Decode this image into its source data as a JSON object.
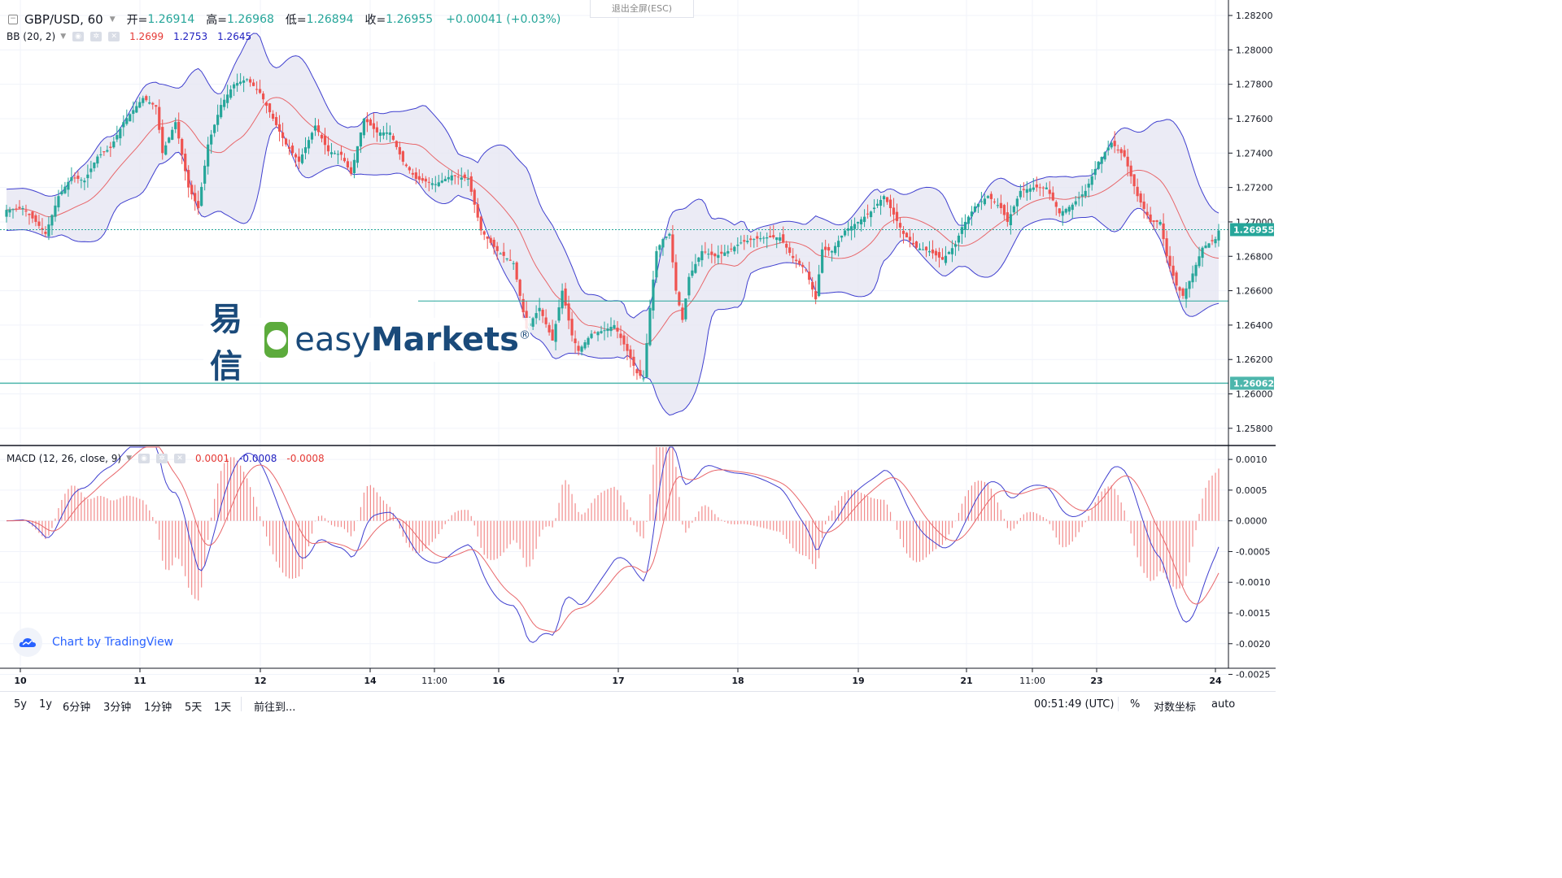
{
  "header": {
    "symbol": "GBP/USD, 60",
    "open_label": "开=",
    "open": "1.26914",
    "high_label": "高=",
    "high": "1.26968",
    "low_label": "低=",
    "low": "1.26894",
    "close_label": "收=",
    "close": "1.26955",
    "change": "+0.00041 (+0.03%)"
  },
  "exit_fullscreen": "退出全屏(ESC)",
  "bb": {
    "label": "BB (20, 2)",
    "v1": "1.2699",
    "v2": "1.2753",
    "v3": "1.2645"
  },
  "macd": {
    "label": "MACD (12, 26, close, 9)",
    "v1": "0.0001",
    "v2": "-0.0008",
    "v3": "-0.0008"
  },
  "watermark": {
    "cn": "易信",
    "en_light": "easy",
    "en_bold": "Markets",
    "reg": "®"
  },
  "tv_logo_text": "Chart by TradingView",
  "toolbar": {
    "ranges": [
      "5y",
      "1y",
      "6分钟",
      "3分钟",
      "1分钟",
      "5天",
      "1天"
    ],
    "goto": "前往到...",
    "time": "00:51:49 (UTC)",
    "percent": "%",
    "log": "对数坐标",
    "auto": "auto"
  },
  "colors": {
    "up": "#26a69a",
    "down": "#ef5350",
    "bb_fill": "#e6e6f2",
    "bb_line": "#3f3fcf",
    "basis": "#e8666a",
    "macd_line": "#3f3fcf",
    "signal": "#e8666a",
    "hist": "#f28b8b"
  },
  "chart_data": {
    "type": "candlestick",
    "price_axis": {
      "ticks": [
        "1.28200",
        "1.28000",
        "1.27800",
        "1.27600",
        "1.27400",
        "1.27200",
        "1.27000",
        "1.26800",
        "1.26600",
        "1.26400",
        "1.26200",
        "1.26000",
        "1.25800"
      ],
      "min": 1.257,
      "max": 1.2829
    },
    "last_price": "1.26955",
    "level_price": "1.26062",
    "level_price_value": 1.26062,
    "support_line": 1.2654,
    "time_axis": [
      "10",
      "11",
      "12",
      "14",
      "11:00",
      "16",
      "17",
      "18",
      "19",
      "21",
      "11:00",
      "23",
      "24"
    ],
    "macd_axis": {
      "ticks": [
        "0.0010",
        "0.0005",
        "0.0000",
        "-0.0005",
        "-0.0010",
        "-0.0015",
        "-0.0020",
        "-0.0025"
      ],
      "min": -0.0024,
      "max": 0.0012
    },
    "path_anchors": [
      [
        0,
        1.2707
      ],
      [
        5,
        1.2708
      ],
      [
        9,
        1.27
      ],
      [
        12,
        1.2693
      ],
      [
        16,
        1.2715
      ],
      [
        20,
        1.2726
      ],
      [
        24,
        1.2724
      ],
      [
        28,
        1.2738
      ],
      [
        32,
        1.2743
      ],
      [
        36,
        1.2758
      ],
      [
        42,
        1.2772
      ],
      [
        46,
        1.2767
      ],
      [
        48,
        1.274
      ],
      [
        52,
        1.2758
      ],
      [
        56,
        1.272
      ],
      [
        59,
        1.2708
      ],
      [
        62,
        1.2745
      ],
      [
        66,
        1.2768
      ],
      [
        70,
        1.278
      ],
      [
        74,
        1.2783
      ],
      [
        78,
        1.2775
      ],
      [
        82,
        1.276
      ],
      [
        86,
        1.2745
      ],
      [
        90,
        1.2735
      ],
      [
        95,
        1.2756
      ],
      [
        99,
        1.2741
      ],
      [
        103,
        1.2739
      ],
      [
        106,
        1.2728
      ],
      [
        110,
        1.276
      ],
      [
        114,
        1.2752
      ],
      [
        118,
        1.2752
      ],
      [
        122,
        1.2735
      ],
      [
        126,
        1.2725
      ],
      [
        132,
        1.2722
      ],
      [
        137,
        1.2727
      ],
      [
        142,
        1.2725
      ],
      [
        146,
        1.2695
      ],
      [
        151,
        1.2683
      ],
      [
        156,
        1.2676
      ],
      [
        160,
        1.2638
      ],
      [
        164,
        1.265
      ],
      [
        168,
        1.2631
      ],
      [
        171,
        1.266
      ],
      [
        174,
        1.2634
      ],
      [
        176,
        1.2625
      ],
      [
        180,
        1.2635
      ],
      [
        184,
        1.2637
      ],
      [
        187,
        1.264
      ],
      [
        191,
        1.2625
      ],
      [
        194,
        1.2612
      ],
      [
        196,
        1.2609
      ],
      [
        198,
        1.265
      ],
      [
        200,
        1.2683
      ],
      [
        202,
        1.269
      ],
      [
        204,
        1.2693
      ],
      [
        206,
        1.266
      ],
      [
        208,
        1.2643
      ],
      [
        210,
        1.2668
      ],
      [
        214,
        1.2683
      ],
      [
        218,
        1.268
      ],
      [
        222,
        1.2683
      ],
      [
        226,
        1.2688
      ],
      [
        230,
        1.269
      ],
      [
        234,
        1.2691
      ],
      [
        238,
        1.2691
      ],
      [
        242,
        1.2679
      ],
      [
        246,
        1.2672
      ],
      [
        249,
        1.2655
      ],
      [
        251,
        1.2684
      ],
      [
        254,
        1.2683
      ],
      [
        258,
        1.2695
      ],
      [
        262,
        1.27
      ],
      [
        266,
        1.2706
      ],
      [
        270,
        1.2715
      ],
      [
        272,
        1.2708
      ],
      [
        276,
        1.2693
      ],
      [
        280,
        1.2685
      ],
      [
        284,
        1.2683
      ],
      [
        288,
        1.2678
      ],
      [
        292,
        1.2687
      ],
      [
        294,
        1.2697
      ],
      [
        298,
        1.2709
      ],
      [
        302,
        1.2715
      ],
      [
        306,
        1.2708
      ],
      [
        308,
        1.27
      ],
      [
        312,
        1.2718
      ],
      [
        316,
        1.272
      ],
      [
        320,
        1.272
      ],
      [
        324,
        1.2705
      ],
      [
        328,
        1.271
      ],
      [
        332,
        1.2718
      ],
      [
        336,
        1.2735
      ],
      [
        340,
        1.2746
      ],
      [
        344,
        1.2738
      ],
      [
        348,
        1.2715
      ],
      [
        352,
        1.27
      ],
      [
        355,
        1.27
      ],
      [
        357,
        1.268
      ],
      [
        360,
        1.2663
      ],
      [
        362,
        1.2657
      ],
      [
        365,
        1.267
      ],
      [
        368,
        1.2685
      ],
      [
        372,
        1.269
      ],
      [
        373,
        1.2695
      ]
    ]
  }
}
